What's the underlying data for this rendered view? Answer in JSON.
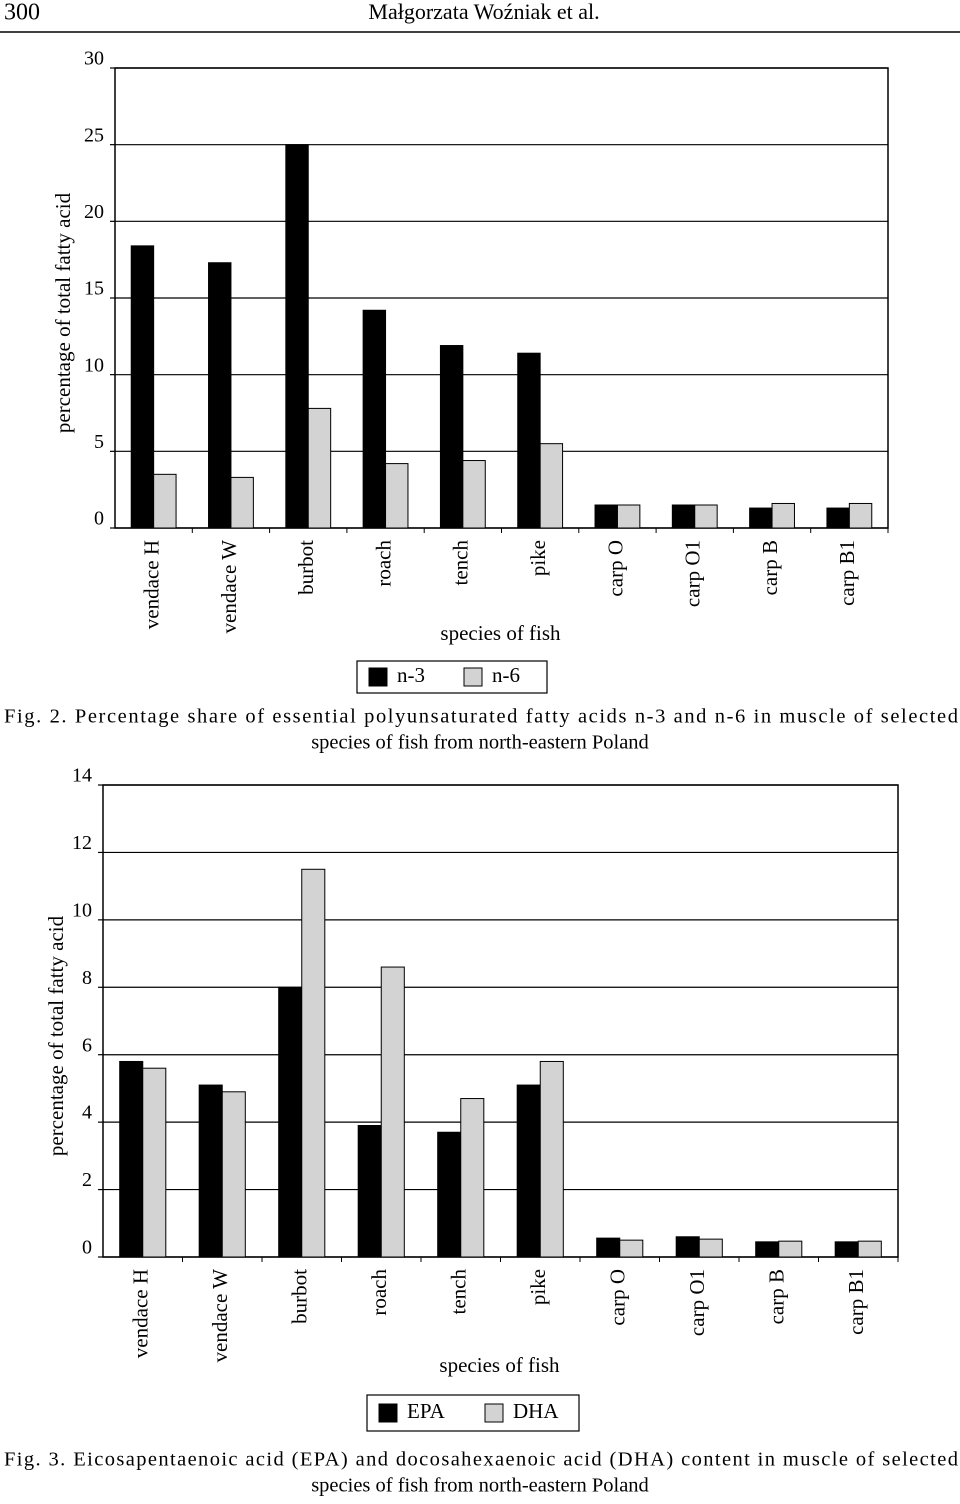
{
  "header": {
    "page": "300",
    "authors": "Małgorzata Woźniak et al."
  },
  "chart_data": [
    {
      "type": "bar",
      "caption": [
        "Fig. 2. Percentage share of essential polyunsaturated fatty acids n-3 and n-6 in muscle of selected",
        "species of fish from north-eastern Poland"
      ],
      "x_label": "species of fish",
      "y_label": "percentage of total fatty acid",
      "categories": [
        "vendace H",
        "vendace W",
        "burbot",
        "roach",
        "tench",
        "pike",
        "carp O",
        "carp O1",
        "carp B",
        "carp B1"
      ],
      "series": [
        {
          "name": "n-3",
          "color": "#000000",
          "values": [
            18.4,
            17.3,
            25.0,
            14.2,
            11.9,
            11.4,
            1.5,
            1.5,
            1.3,
            1.3
          ]
        },
        {
          "name": "n-6",
          "color": "#d3d3d3",
          "values": [
            3.5,
            3.3,
            7.8,
            4.2,
            4.4,
            5.5,
            1.5,
            1.5,
            1.6,
            1.6
          ]
        }
      ],
      "ylim": [
        0,
        30
      ],
      "yticks": [
        0,
        5,
        10,
        15,
        20,
        25,
        30
      ],
      "grid": true
    },
    {
      "type": "bar",
      "caption": [
        "Fig. 3. Eicosapentaenoic acid (EPA) and docosahexaenoic acid (DHA) content in muscle of selected",
        "species of fish from north-eastern Poland"
      ],
      "x_label": "species of fish",
      "y_label": "percentage of total fatty acid",
      "categories": [
        "vendace H",
        "vendace W",
        "burbot",
        "roach",
        "tench",
        "pike",
        "carp O",
        "carp O1",
        "carp B",
        "carp B1"
      ],
      "series": [
        {
          "name": "EPA",
          "color": "#000000",
          "values": [
            5.8,
            5.1,
            8.0,
            3.9,
            3.7,
            5.1,
            0.56,
            0.6,
            0.45,
            0.45
          ]
        },
        {
          "name": "DHA",
          "color": "#d3d3d3",
          "values": [
            5.6,
            4.9,
            11.5,
            8.6,
            4.7,
            5.8,
            0.5,
            0.53,
            0.47,
            0.47
          ]
        }
      ],
      "ylim": [
        0,
        14
      ],
      "yticks": [
        0,
        2,
        4,
        6,
        8,
        10,
        12,
        14
      ],
      "grid": true
    }
  ]
}
